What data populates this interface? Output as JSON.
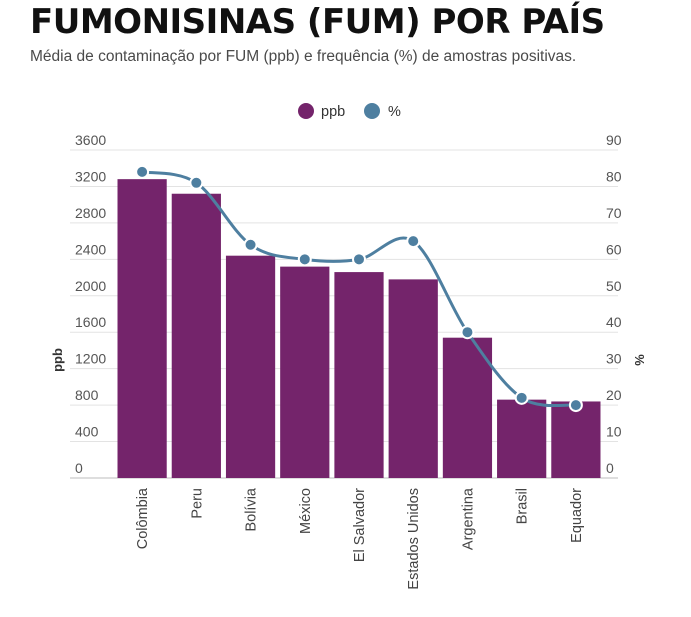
{
  "title": "FUMONISINAS (FUM) POR PAÍS",
  "subtitle": "Média de contaminação por FUM (ppb) e frequência (%) de amostras positivas.",
  "chart_data": {
    "type": "bar",
    "categories": [
      "Colômbia",
      "Peru",
      "Bolívia",
      "México",
      "El Salvador",
      "Estados Unidos",
      "Argentina",
      "Brasil",
      "Equador"
    ],
    "series": [
      {
        "name": "ppb",
        "type": "bar",
        "axis": "left",
        "color": "#74246b",
        "values": [
          3280,
          3120,
          2440,
          2320,
          2260,
          2180,
          1540,
          860,
          840
        ]
      },
      {
        "name": "%",
        "type": "line",
        "smooth": true,
        "axis": "right",
        "color": "#4e7fa0",
        "values": [
          84,
          81,
          64,
          60,
          60,
          65,
          40,
          22,
          20
        ]
      }
    ],
    "ylabel": "ppb",
    "y2label": "%",
    "ylim": [
      0,
      3600
    ],
    "y2lim": [
      0,
      90
    ],
    "yticks": [
      "0",
      "400",
      "800",
      "1200",
      "1600",
      "2000",
      "2400",
      "2800",
      "3200",
      "3600"
    ],
    "y2ticks": [
      "0",
      "10",
      "20",
      "30",
      "40",
      "50",
      "60",
      "70",
      "80",
      "90"
    ],
    "grid": true,
    "legend_position": "top-center"
  }
}
